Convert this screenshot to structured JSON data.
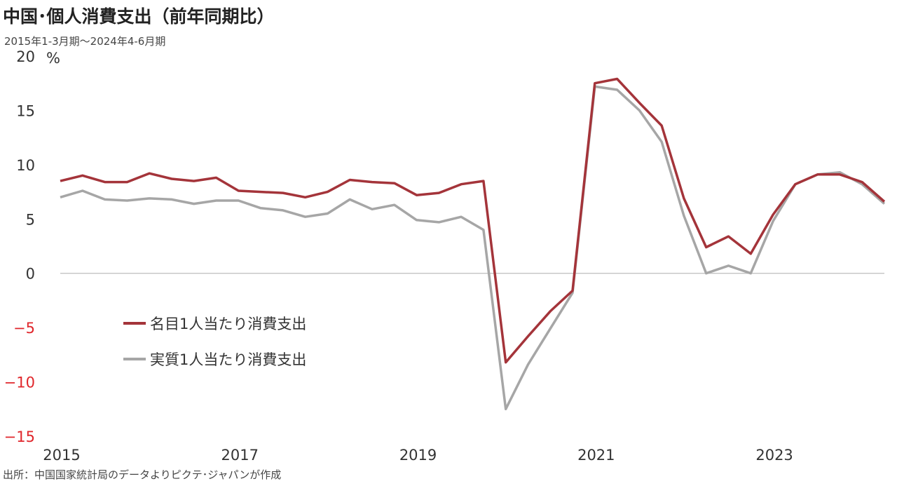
{
  "header": {
    "title": "中国･個人消費支出（前年同期比）",
    "subtitle": "2015年1-3月期～2024年4-6月期"
  },
  "footer": {
    "source": "出所：中国国家統計局のデータよりピクテ･ジャパンが作成"
  },
  "chart_data": {
    "type": "line",
    "xlabel": "",
    "ylabel": "",
    "unit_label": "%",
    "ylim": [
      -15,
      20
    ],
    "yticks": [
      20,
      15,
      10,
      5,
      0,
      -5,
      -10,
      -15
    ],
    "negative_tick_color": "#e0262b",
    "xtick_labels": [
      "2015",
      "2017",
      "2019",
      "2021",
      "2023"
    ],
    "xlim": [
      2015.125,
      2024.375
    ],
    "grid": false,
    "legend_position": "left-middle",
    "series": [
      {
        "name": "名目1人当たり消費支出",
        "color": "#a4343a",
        "x": [
          2015.125,
          2015.375,
          2015.625,
          2015.875,
          2016.125,
          2016.375,
          2016.625,
          2016.875,
          2017.125,
          2017.375,
          2017.625,
          2017.875,
          2018.125,
          2018.375,
          2018.625,
          2018.875,
          2019.125,
          2019.375,
          2019.625,
          2019.875,
          2020.125,
          2020.375,
          2020.625,
          2020.875,
          2021.125,
          2021.375,
          2021.625,
          2021.875,
          2022.125,
          2022.375,
          2022.625,
          2022.875,
          2023.125,
          2023.375,
          2023.625,
          2023.875,
          2024.125,
          2024.375
        ],
        "values": [
          8.5,
          9.0,
          8.4,
          8.4,
          9.2,
          8.7,
          8.5,
          8.8,
          7.6,
          7.5,
          7.4,
          7.0,
          7.5,
          8.6,
          8.4,
          8.3,
          7.2,
          7.4,
          8.2,
          8.5,
          -8.2,
          -5.8,
          -3.5,
          -1.6,
          17.5,
          17.9,
          15.7,
          13.6,
          6.9,
          2.4,
          3.4,
          1.8,
          5.4,
          8.2,
          9.1,
          9.1,
          8.4,
          6.6
        ]
      },
      {
        "name": "実質1人当たり消費支出",
        "color": "#a6a6a6",
        "x": [
          2015.125,
          2015.375,
          2015.625,
          2015.875,
          2016.125,
          2016.375,
          2016.625,
          2016.875,
          2017.125,
          2017.375,
          2017.625,
          2017.875,
          2018.125,
          2018.375,
          2018.625,
          2018.875,
          2019.125,
          2019.375,
          2019.625,
          2019.875,
          2020.125,
          2020.375,
          2020.625,
          2020.875,
          2021.125,
          2021.375,
          2021.625,
          2021.875,
          2022.125,
          2022.375,
          2022.625,
          2022.875,
          2023.125,
          2023.375,
          2023.625,
          2023.875,
          2024.125,
          2024.375
        ],
        "values": [
          7.0,
          7.6,
          6.8,
          6.7,
          6.9,
          6.8,
          6.4,
          6.7,
          6.7,
          6.0,
          5.8,
          5.2,
          5.5,
          6.8,
          5.9,
          6.3,
          4.9,
          4.7,
          5.2,
          4.0,
          -12.5,
          -8.4,
          -5.1,
          -1.8,
          17.2,
          16.9,
          15.0,
          12.1,
          5.3,
          0.0,
          0.7,
          0.0,
          4.8,
          8.2,
          9.1,
          9.3,
          8.2,
          6.4
        ]
      }
    ]
  }
}
